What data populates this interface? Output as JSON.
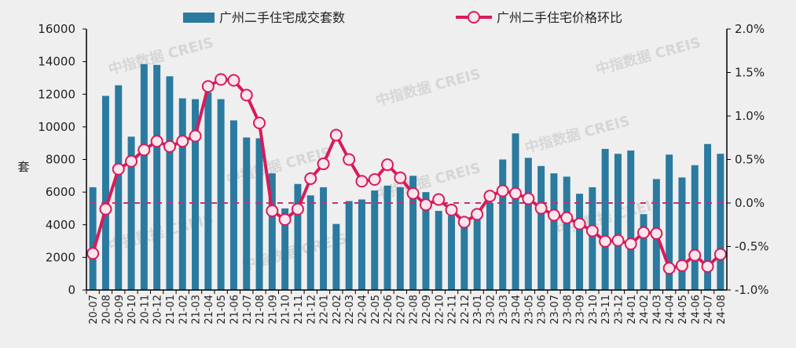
{
  "chart_data": {
    "type": "bar+line",
    "categories": [
      "20-07",
      "20-08",
      "20-09",
      "20-10",
      "20-11",
      "20-12",
      "21-01",
      "21-02",
      "21-03",
      "21-04",
      "21-05",
      "21-06",
      "21-07",
      "21-08",
      "21-09",
      "21-10",
      "21-11",
      "21-12",
      "22-01",
      "22-02",
      "22-03",
      "22-04",
      "22-05",
      "22-06",
      "22-07",
      "22-08",
      "22-09",
      "22-10",
      "22-11",
      "22-12",
      "23-01",
      "23-02",
      "23-03",
      "23-04",
      "23-05",
      "23-06",
      "23-07",
      "23-08",
      "23-09",
      "23-10",
      "23-11",
      "23-12",
      "24-01",
      "24-02",
      "24-03",
      "24-04",
      "24-05",
      "24-06",
      "24-07",
      "24-08"
    ],
    "series": [
      {
        "name": "广州二手住宅成交套数",
        "type": "bar",
        "axis": "left",
        "color": "#2b7a9f",
        "values": [
          6300,
          11900,
          12550,
          9400,
          13850,
          13800,
          13100,
          11750,
          11700,
          12100,
          11700,
          10400,
          9350,
          9300,
          7150,
          5000,
          6500,
          5800,
          6300,
          4050,
          5450,
          5550,
          6100,
          6400,
          6300,
          7000,
          6000,
          4850,
          4550,
          3900,
          4300,
          5350,
          8000,
          9600,
          8100,
          7600,
          7150,
          6950,
          5900,
          6300,
          8650,
          8350,
          8550,
          4650,
          6800,
          8300,
          6900,
          7650,
          8950,
          8350
        ]
      },
      {
        "name": "广州二手住宅价格环比",
        "type": "line",
        "axis": "right",
        "unit": "%",
        "color": "#d81b5a",
        "values": [
          -0.58,
          -0.07,
          0.39,
          0.48,
          0.61,
          0.71,
          0.65,
          0.71,
          0.77,
          1.34,
          1.42,
          1.41,
          1.24,
          0.92,
          -0.09,
          -0.19,
          -0.07,
          0.28,
          0.45,
          0.78,
          0.5,
          0.25,
          0.27,
          0.44,
          0.29,
          0.11,
          -0.02,
          0.04,
          -0.08,
          -0.22,
          -0.13,
          0.08,
          0.14,
          0.11,
          0.05,
          -0.06,
          -0.14,
          -0.17,
          -0.24,
          -0.32,
          -0.44,
          -0.43,
          -0.47,
          -0.34,
          -0.35,
          -0.75,
          -0.72,
          -0.6,
          -0.73,
          -0.59
        ]
      }
    ],
    "ylabel": "套",
    "ylim": [
      0,
      16000
    ],
    "yticks": [
      "0",
      "2000",
      "4000",
      "6000",
      "8000",
      "10000",
      "12000",
      "14000",
      "16000"
    ],
    "y2lim": [
      -1.0,
      2.0
    ],
    "y2ticks": [
      "-1.0%",
      "-0.5%",
      "0.0%",
      "0.5%",
      "1.0%",
      "1.5%",
      "2.0%"
    ],
    "reference_line": {
      "axis": "right",
      "value": 0,
      "style": "dashed"
    },
    "legend": "top",
    "grid": false
  },
  "watermark": "中指数据 CREIS"
}
